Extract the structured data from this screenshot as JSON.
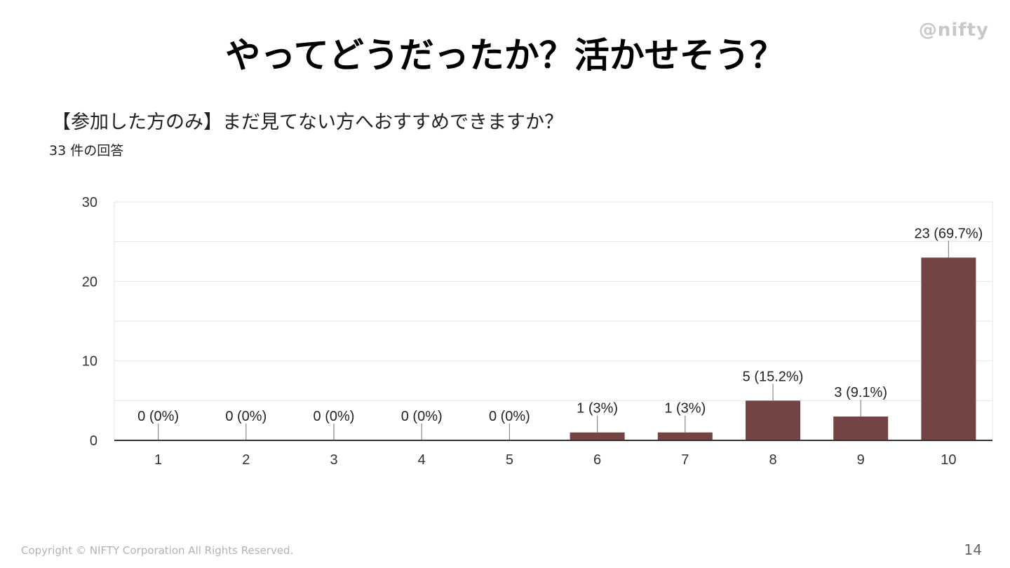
{
  "slide": {
    "title": "やってどうだったか？活かせそう？",
    "brand": "@nifty",
    "question": "【参加した方のみ】まだ見てない方へおすすめできますか？",
    "response_count": "33 件の回答",
    "copyright": "Copyright © NIFTY Corporation All Rights Reserved.",
    "page_number": "14"
  },
  "colors": {
    "bar": "#744444",
    "grid": "#e6e6e6",
    "axis": "#333333",
    "leader": "#888888"
  },
  "chart_data": {
    "type": "bar",
    "categories": [
      "1",
      "2",
      "3",
      "4",
      "5",
      "6",
      "7",
      "8",
      "9",
      "10"
    ],
    "values": [
      0,
      0,
      0,
      0,
      0,
      1,
      1,
      5,
      3,
      23
    ],
    "data_labels": [
      "0 (0%)",
      "0 (0%)",
      "0 (0%)",
      "0 (0%)",
      "0 (0%)",
      "1 (3%)",
      "1 (3%)",
      "5 (15.2%)",
      "3 (9.1%)",
      "23 (69.7%)"
    ],
    "yticks": [
      0,
      10,
      20,
      30
    ],
    "ylim": [
      0,
      30
    ],
    "grid": true,
    "title": "",
    "xlabel": "",
    "ylabel": ""
  }
}
